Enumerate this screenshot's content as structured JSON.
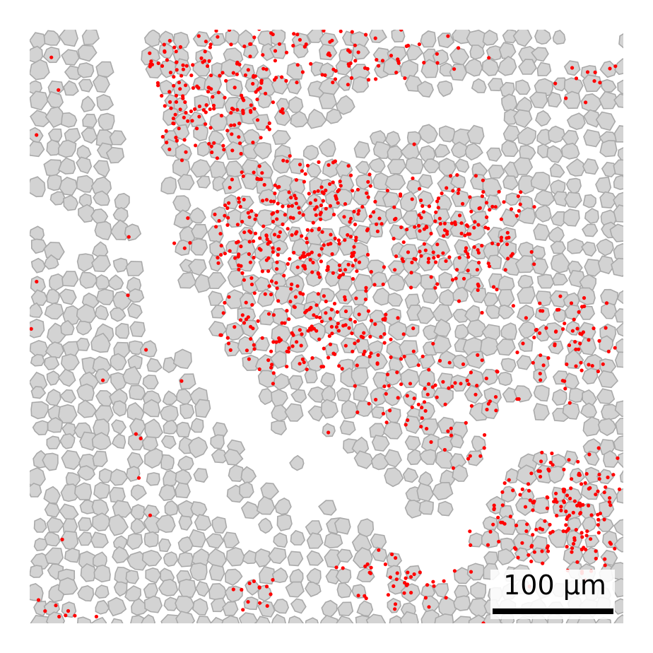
{
  "figure": {
    "type": "spatial-cell-map",
    "cell_fill": "#d3d3d3",
    "cell_edge": "#a9a9a9",
    "transcript_color": "#ff0000",
    "background": "#ffffff",
    "legend": "none",
    "axes": "hidden"
  },
  "scale_bar": {
    "label": "100 µm",
    "bar_color": "#000000",
    "backdrop_color": "#ffffff"
  }
}
